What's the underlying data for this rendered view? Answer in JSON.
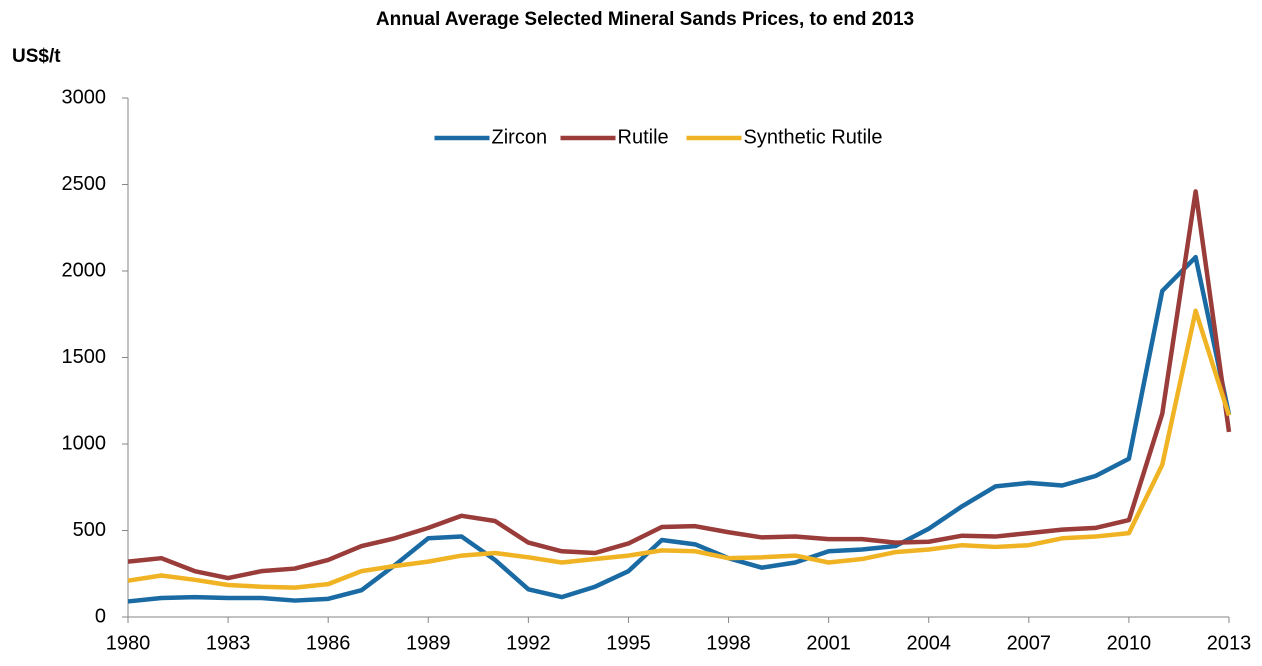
{
  "chart_data": {
    "type": "line",
    "title": "Annual Average Selected Mineral Sands Prices, to end 2013",
    "y_label": "US$/t",
    "x": [
      1980,
      1981,
      1982,
      1983,
      1984,
      1985,
      1986,
      1987,
      1988,
      1989,
      1990,
      1991,
      1992,
      1993,
      1994,
      1995,
      1996,
      1997,
      1998,
      1999,
      2000,
      2001,
      2002,
      2003,
      2004,
      2005,
      2006,
      2007,
      2008,
      2009,
      2010,
      2011,
      2012,
      2013
    ],
    "series": [
      {
        "name": "Zircon",
        "color": "#1a6aa4",
        "values": [
          90,
          110,
          115,
          110,
          110,
          95,
          105,
          155,
          300,
          455,
          465,
          330,
          160,
          115,
          175,
          265,
          445,
          420,
          340,
          285,
          315,
          380,
          390,
          410,
          510,
          640,
          755,
          775,
          760,
          815,
          915,
          1885,
          2080,
          1170
        ]
      },
      {
        "name": "Rutile",
        "color": "#993c3a",
        "values": [
          320,
          340,
          265,
          225,
          265,
          280,
          330,
          410,
          455,
          515,
          585,
          555,
          430,
          380,
          370,
          425,
          520,
          525,
          490,
          460,
          465,
          450,
          450,
          430,
          435,
          470,
          465,
          485,
          505,
          515,
          560,
          1175,
          2460,
          1070
        ]
      },
      {
        "name": "Synthetic Rutile",
        "color": "#f0b323",
        "values": [
          210,
          240,
          215,
          185,
          175,
          170,
          190,
          265,
          295,
          320,
          355,
          370,
          345,
          315,
          335,
          355,
          385,
          380,
          340,
          345,
          355,
          315,
          335,
          375,
          390,
          415,
          405,
          415,
          455,
          465,
          485,
          880,
          1770,
          1165
        ]
      }
    ],
    "xlim": [
      1980,
      2013
    ],
    "xticks": [
      1980,
      1983,
      1986,
      1989,
      1992,
      1995,
      1998,
      2001,
      2004,
      2007,
      2010,
      2013
    ],
    "ylim": [
      0,
      3000
    ],
    "yticks": [
      0,
      500,
      1000,
      1500,
      2000,
      2500,
      3000
    ],
    "grid": false,
    "legend": "top"
  }
}
